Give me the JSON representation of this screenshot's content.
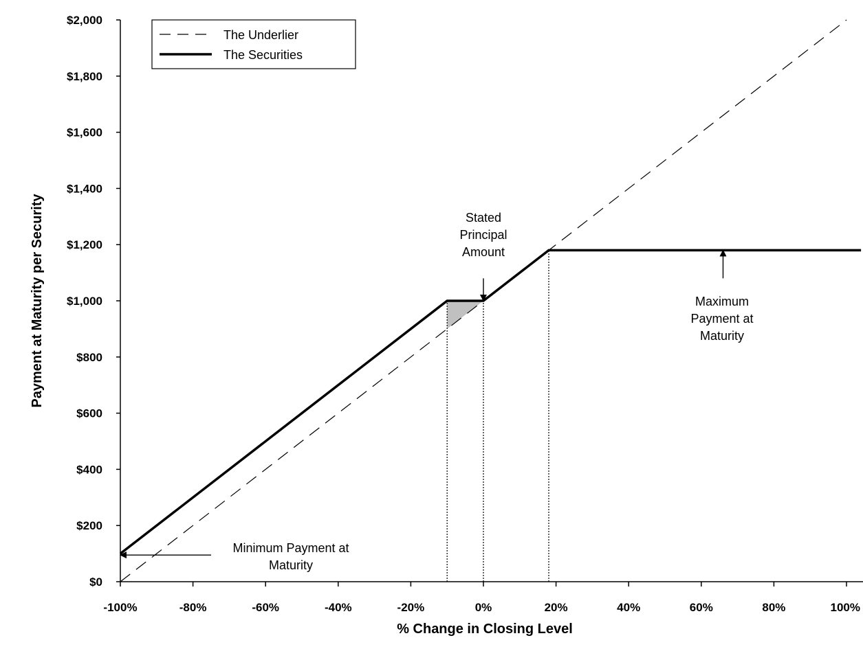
{
  "chart_data": {
    "type": "line",
    "title": "",
    "xlabel": "% Change in Closing Level",
    "ylabel": "Payment at Maturity per Security",
    "xlim": [
      -100,
      100
    ],
    "ylim": [
      0,
      2000
    ],
    "x_ticks": [
      {
        "value": -100,
        "label": "-100%"
      },
      {
        "value": -80,
        "label": "-80%"
      },
      {
        "value": -60,
        "label": "-60%"
      },
      {
        "value": -40,
        "label": "-40%"
      },
      {
        "value": -20,
        "label": "-20%"
      },
      {
        "value": 0,
        "label": "0%"
      },
      {
        "value": 20,
        "label": "20%"
      },
      {
        "value": 40,
        "label": "40%"
      },
      {
        "value": 60,
        "label": "60%"
      },
      {
        "value": 80,
        "label": "80%"
      },
      {
        "value": 100,
        "label": "100%"
      }
    ],
    "y_ticks": [
      {
        "value": 0,
        "label": "$0"
      },
      {
        "value": 200,
        "label": "$200"
      },
      {
        "value": 400,
        "label": "$400"
      },
      {
        "value": 600,
        "label": "$600"
      },
      {
        "value": 800,
        "label": "$800"
      },
      {
        "value": 1000,
        "label": "$1,000"
      },
      {
        "value": 1200,
        "label": "$1,200"
      },
      {
        "value": 1400,
        "label": "$1,400"
      },
      {
        "value": 1600,
        "label": "$1,600"
      },
      {
        "value": 1800,
        "label": "$1,800"
      },
      {
        "value": 2000,
        "label": "$2,000"
      }
    ],
    "grid": false,
    "legend_position": "top-left",
    "series": [
      {
        "name": "The Underlier",
        "style": "dashed",
        "color": "#000000",
        "x": [
          -100,
          100
        ],
        "y": [
          0,
          2000
        ]
      },
      {
        "name": "The Securities",
        "style": "solid-thick",
        "color": "#000000",
        "x": [
          -100,
          -10,
          0,
          18,
          104
        ],
        "y": [
          100,
          1000,
          1000,
          1180,
          1180
        ]
      }
    ],
    "shaded_region": {
      "color": "#c0c0c0",
      "points": [
        [
          -10,
          1000
        ],
        [
          0,
          1000
        ],
        [
          -10,
          900
        ]
      ]
    },
    "reference_lines": [
      {
        "x": -10,
        "y_top": 1000
      },
      {
        "x": 0,
        "y_top": 1000
      },
      {
        "x": 18,
        "y_top": 1180
      }
    ],
    "annotations": [
      {
        "id": "stated-principal",
        "lines": [
          "Stated",
          "Principal",
          "Amount"
        ],
        "arrow_to": [
          0,
          1000
        ],
        "arrow_from": [
          0,
          1080
        ]
      },
      {
        "id": "maximum-payment",
        "lines": [
          "Maximum",
          "Payment at",
          "Maturity"
        ],
        "arrow_to": [
          66,
          1180
        ],
        "arrow_from": [
          66,
          1080
        ]
      },
      {
        "id": "minimum-payment",
        "lines": [
          "Minimum Payment at",
          "Maturity"
        ],
        "arrow_to": [
          -100,
          95
        ],
        "arrow_from": [
          -75,
          95
        ]
      }
    ]
  }
}
